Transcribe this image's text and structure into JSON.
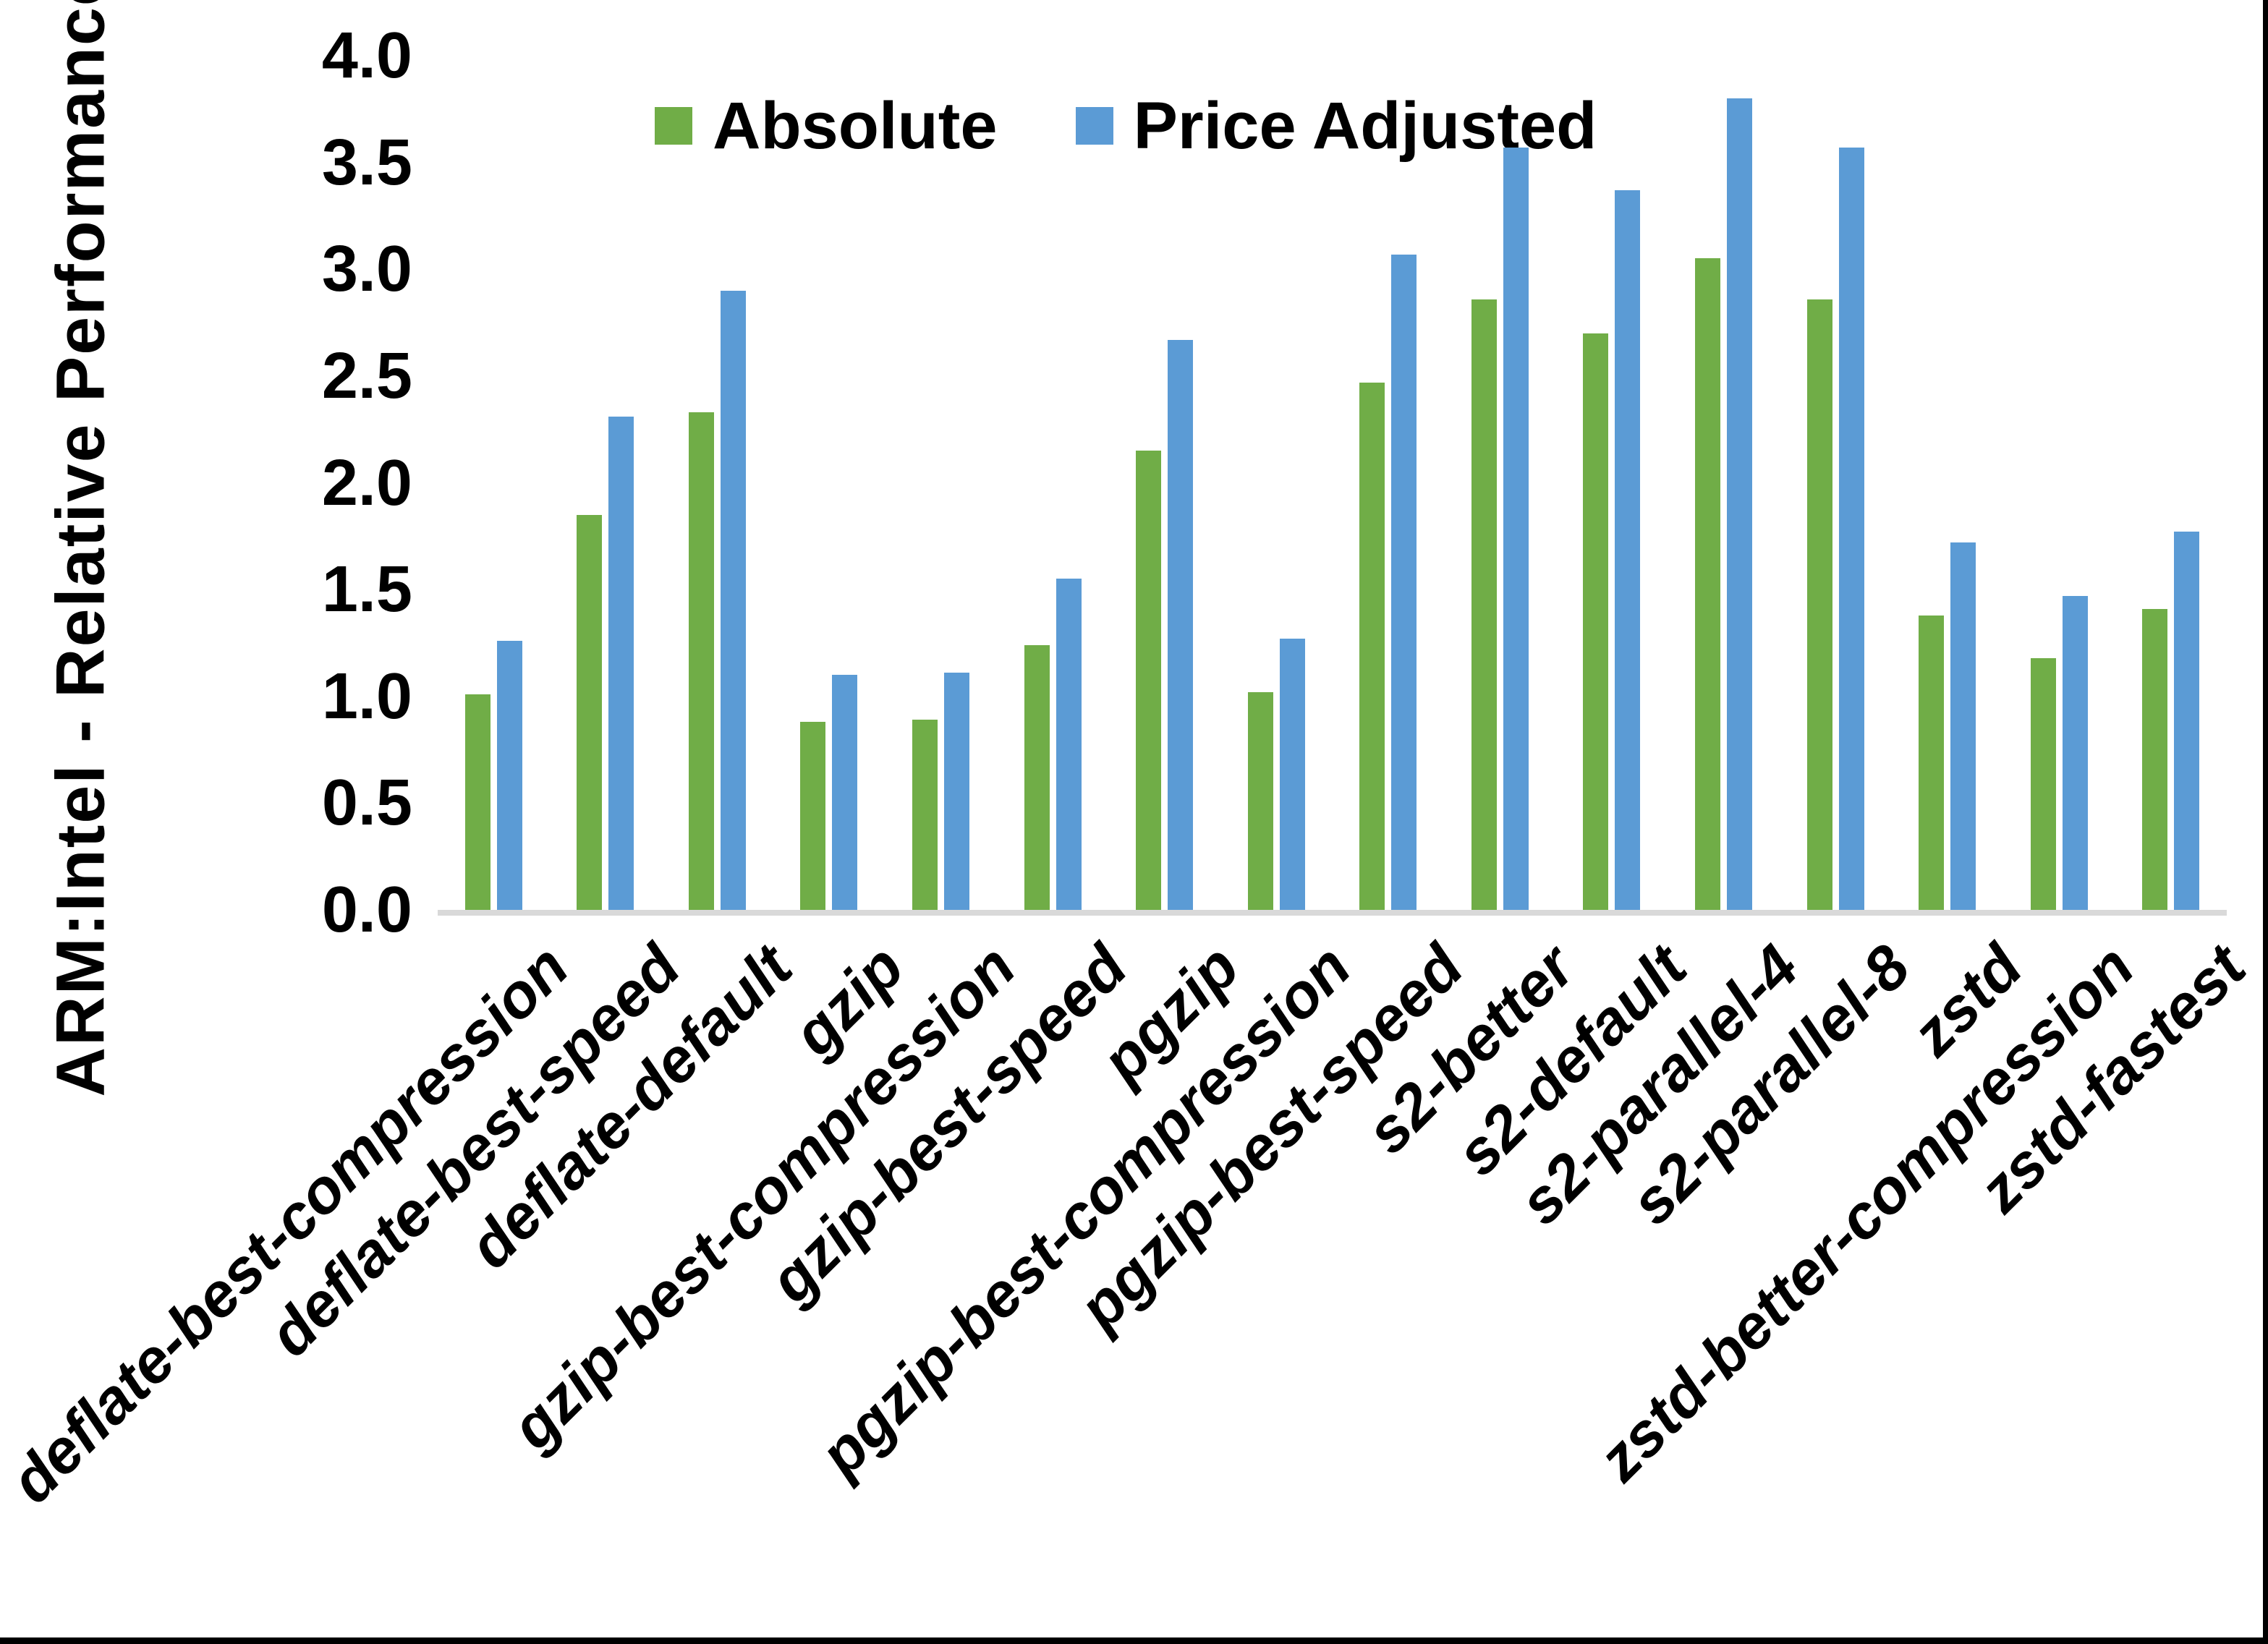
{
  "chart_data": {
    "type": "bar",
    "title": "",
    "ylabel": "ARM:Intel - Relative Performance",
    "xlabel": "",
    "ylim": [
      0.0,
      4.0
    ],
    "ytick_labels": [
      "0.0",
      "0.5",
      "1.0",
      "1.5",
      "2.0",
      "2.5",
      "3.0",
      "3.5",
      "4.0"
    ],
    "yticks": [
      0.0,
      0.5,
      1.0,
      1.5,
      2.0,
      2.5,
      3.0,
      3.5,
      4.0
    ],
    "grid": false,
    "legend_position": "top-center",
    "categories": [
      "deflate-best-compression",
      "deflate-best-speed",
      "deflate-default",
      "gzip",
      "gzip-best-compression",
      "gzip-best-speed",
      "pgzip",
      "pgzip-best-compression",
      "pgzip-best-speed",
      "s2-better",
      "s2-default",
      "s2-parallel-4",
      "s2-parallel-8",
      "zstd",
      "zstd-better-compression",
      "zstd-fastest"
    ],
    "series": [
      {
        "name": "Absolute",
        "color": "#70AD47",
        "values": [
          1.01,
          1.85,
          2.33,
          0.88,
          0.89,
          1.24,
          2.15,
          1.02,
          2.47,
          2.86,
          2.7,
          3.05,
          2.86,
          1.38,
          1.18,
          1.41
        ]
      },
      {
        "name": "Price Adjusted",
        "color": "#5B9BD5",
        "values": [
          1.26,
          2.31,
          2.9,
          1.1,
          1.11,
          1.55,
          2.67,
          1.27,
          3.07,
          3.57,
          3.37,
          3.8,
          3.57,
          1.72,
          1.47,
          1.77
        ]
      }
    ]
  },
  "colors": {
    "background": "#FFFFFF",
    "axis_line": "#D9D9D9",
    "text": "#000000",
    "border": "#000000"
  }
}
